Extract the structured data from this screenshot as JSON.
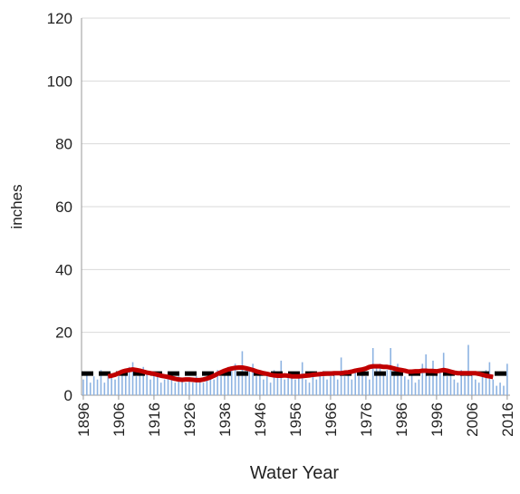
{
  "chart_data": {
    "type": "bar",
    "x": [
      1896,
      1897,
      1898,
      1899,
      1900,
      1901,
      1902,
      1903,
      1904,
      1905,
      1906,
      1907,
      1908,
      1909,
      1910,
      1911,
      1912,
      1913,
      1914,
      1915,
      1916,
      1917,
      1918,
      1919,
      1920,
      1921,
      1922,
      1923,
      1924,
      1925,
      1926,
      1927,
      1928,
      1929,
      1930,
      1931,
      1932,
      1933,
      1934,
      1935,
      1936,
      1937,
      1938,
      1939,
      1940,
      1941,
      1942,
      1943,
      1944,
      1945,
      1946,
      1947,
      1948,
      1949,
      1950,
      1951,
      1952,
      1953,
      1954,
      1955,
      1956,
      1957,
      1958,
      1959,
      1960,
      1961,
      1962,
      1963,
      1964,
      1965,
      1966,
      1967,
      1968,
      1969,
      1970,
      1971,
      1972,
      1973,
      1974,
      1975,
      1976,
      1977,
      1978,
      1979,
      1980,
      1981,
      1982,
      1983,
      1984,
      1985,
      1986,
      1987,
      1988,
      1989,
      1990,
      1991,
      1992,
      1993,
      1994,
      1995,
      1996,
      1997,
      1998,
      1999,
      2000,
      2001,
      2002,
      2003,
      2004,
      2005,
      2006,
      2007,
      2008,
      2009,
      2010,
      2011,
      2012,
      2013,
      2014,
      2015,
      2016
    ],
    "series": [
      {
        "type": "bar",
        "color": "#8db3e2",
        "values": [
          5,
          7,
          4,
          6,
          5,
          8,
          4,
          6,
          7,
          5,
          6,
          8,
          7,
          9,
          10.5,
          6,
          8,
          9,
          7,
          5,
          7,
          6,
          4,
          5,
          6,
          5,
          4,
          6,
          5,
          4,
          5,
          4,
          6,
          5,
          4,
          6,
          7,
          5,
          8,
          6,
          7,
          9,
          8,
          10,
          7,
          14,
          9,
          8,
          10,
          6,
          7,
          5,
          6,
          4,
          8,
          6,
          11,
          5,
          6,
          7,
          5,
          6,
          10.5,
          5,
          4,
          6,
          5,
          7,
          6,
          5,
          6,
          7,
          5,
          12,
          6,
          7,
          5,
          8,
          6,
          7,
          6,
          5,
          15,
          9,
          10,
          7,
          8,
          15,
          9,
          10,
          7,
          6,
          5,
          8,
          4,
          5,
          10,
          13,
          6,
          11,
          7,
          8,
          13.5,
          6,
          7,
          5,
          4,
          8,
          6,
          16,
          7,
          5,
          4,
          6,
          8,
          10.5,
          5,
          3,
          4,
          3,
          10
        ]
      },
      {
        "type": "line",
        "color": "#c00000",
        "values": [
          null,
          null,
          null,
          null,
          null,
          null,
          null,
          6,
          6.2,
          6.5,
          7,
          7.5,
          7.8,
          8,
          8.2,
          8,
          7.8,
          7.5,
          7.2,
          7,
          6.8,
          6.5,
          6.2,
          6,
          5.8,
          5.5,
          5.2,
          5,
          4.9,
          5,
          5,
          4.9,
          4.8,
          4.8,
          5,
          5.3,
          5.7,
          6.2,
          6.8,
          7.3,
          7.8,
          8.2,
          8.5,
          8.7,
          8.8,
          8.8,
          8.6,
          8.3,
          8,
          7.6,
          7.3,
          7,
          6.8,
          6.5,
          6.3,
          6.2,
          6.2,
          6.3,
          6.2,
          6,
          6,
          6,
          6.1,
          6.2,
          6.3,
          6.5,
          6.6,
          6.7,
          6.8,
          6.9,
          6.9,
          7,
          7,
          7,
          7.2,
          7.3,
          7.5,
          7.8,
          8,
          8.2,
          8.5,
          9,
          9.2,
          9.2,
          9.2,
          9,
          9,
          8.8,
          8.5,
          8.2,
          8,
          7.8,
          7.5,
          7.5,
          7.6,
          7.6,
          7.8,
          7.8,
          7.7,
          7.7,
          7.6,
          7.8,
          8,
          7.8,
          7.5,
          7.2,
          7,
          7,
          7,
          7,
          7,
          7,
          6.8,
          6.5,
          6.2,
          6,
          5.8,
          null,
          null,
          null,
          null
        ]
      }
    ],
    "reference_line": {
      "value": 6.9,
      "color": "#000000",
      "dashed": true
    },
    "xlabel": "Water Year",
    "ylabel": "inches",
    "xlim": [
      1895.5,
      2016.8
    ],
    "xticks": [
      1896,
      1906,
      1916,
      1926,
      1936,
      1946,
      1956,
      1966,
      1976,
      1986,
      1996,
      2006,
      2016
    ],
    "ylim": [
      0,
      120
    ],
    "yticks": [
      0,
      20,
      40,
      60,
      80,
      100,
      120
    ],
    "grid": true
  }
}
